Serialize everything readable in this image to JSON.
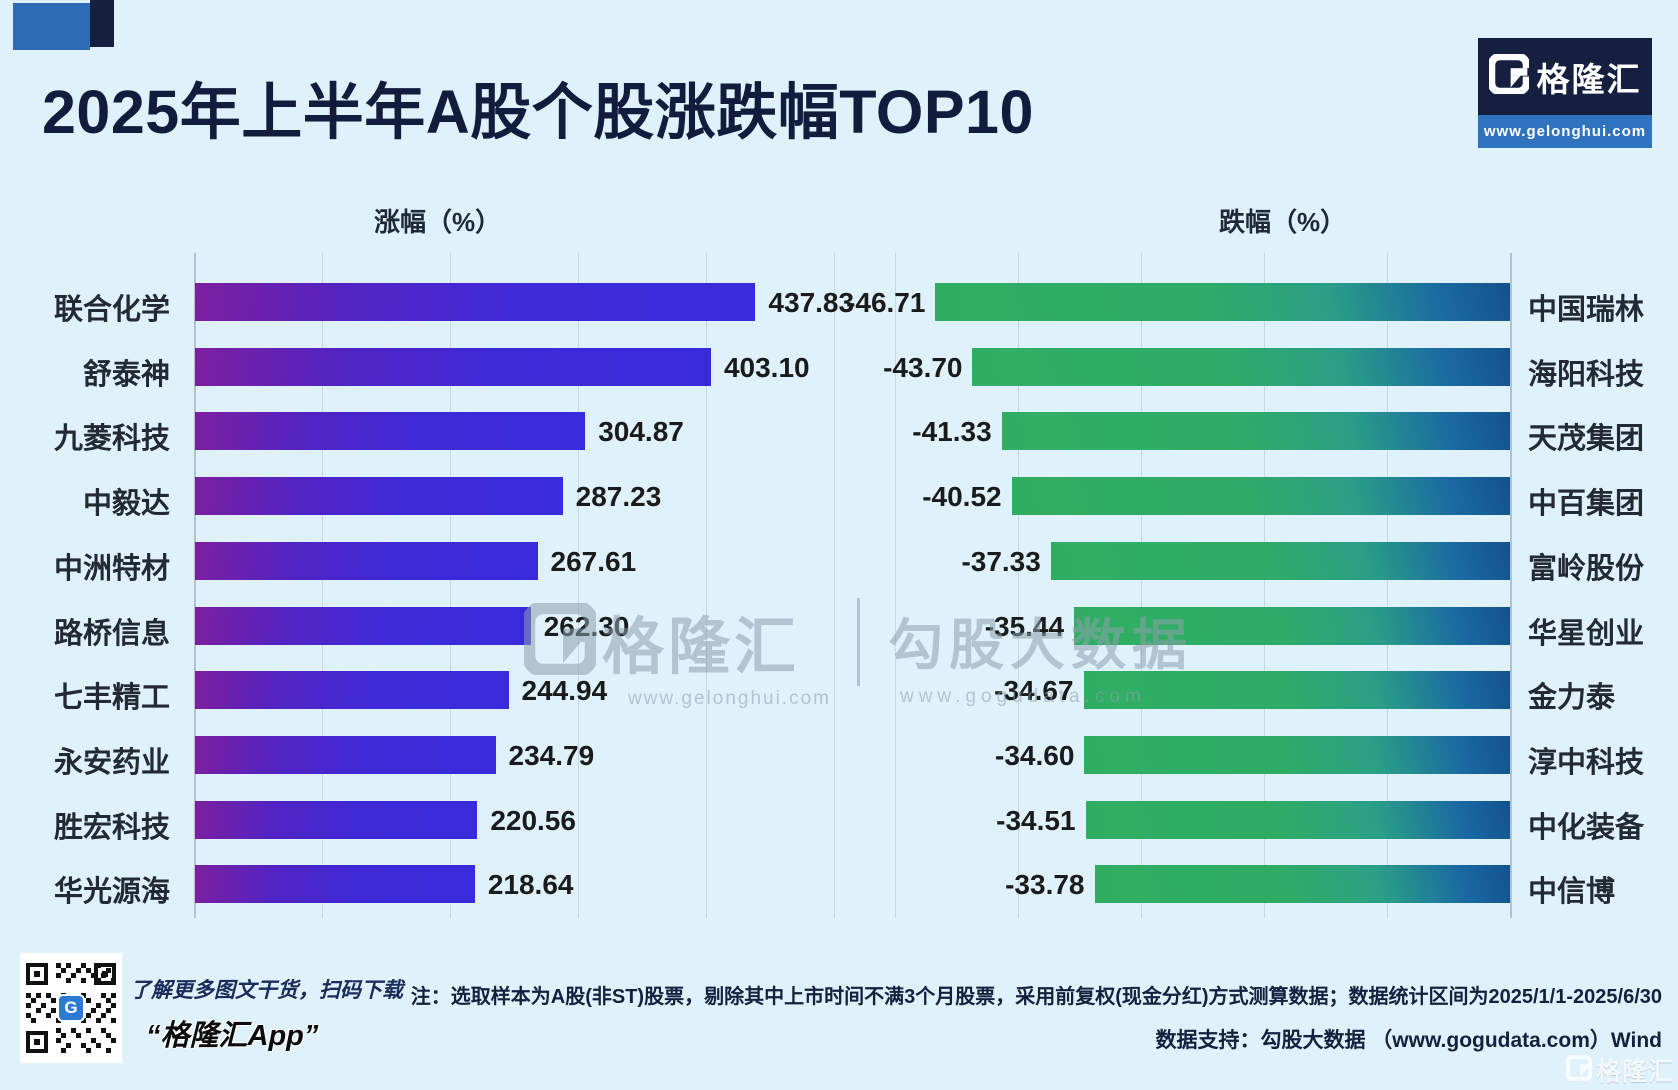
{
  "page": {
    "title": "2025年上半年A股个股涨跌幅TOP10",
    "background": "#DFF1FA"
  },
  "logo": {
    "mark": "G",
    "name": "格隆汇",
    "url": "www.gelonghui.com"
  },
  "chart_data": [
    {
      "type": "bar",
      "title": "涨幅（%）",
      "orientation": "horizontal",
      "categories": [
        "联合化学",
        "舒泰神",
        "九菱科技",
        "中毅达",
        "中洲特材",
        "路桥信息",
        "七丰精工",
        "永安药业",
        "胜宏科技",
        "华光源海"
      ],
      "values": [
        437.83,
        403.1,
        304.87,
        287.23,
        267.61,
        262.3,
        244.94,
        234.79,
        220.56,
        218.64
      ],
      "xlim": [
        0,
        500
      ],
      "grid_step": 100,
      "grid_on": true,
      "value_labels": "end-of-bar",
      "bar_color_start": "#7C1F9F",
      "bar_color_end": "#392BDB"
    },
    {
      "type": "bar",
      "title": "跌幅（%）",
      "orientation": "horizontal",
      "categories": [
        "中国瑞林",
        "海阳科技",
        "天茂集团",
        "中百集团",
        "富岭股份",
        "华星创业",
        "金力泰",
        "淳中科技",
        "中化装备",
        "中信博"
      ],
      "values": [
        -46.71,
        -43.7,
        -41.33,
        -40.52,
        -37.33,
        -35.44,
        -34.67,
        -34.6,
        -34.51,
        -33.78
      ],
      "xlim": [
        -50,
        0
      ],
      "grid_step": 10,
      "grid_on": true,
      "value_labels": "end-of-bar",
      "bar_color_start": "#2FAE63",
      "bar_color_end": "#14528C"
    }
  ],
  "watermark": {
    "gelonghui": {
      "name": "格隆汇",
      "url": "www.gelonghui.com"
    },
    "gogudata": {
      "name": "勾股大数据",
      "url": "www.gogudata.com"
    }
  },
  "qr": {
    "caption1": "了解更多图文干货，扫码下载",
    "caption2": "“格隆汇App”",
    "badge": "G"
  },
  "notes": {
    "line1": "注：选取样本为A股(非ST)股票，剔除其中上市时间不满3个月股票，采用前复权(现金分红)方式测算数据；数据统计区间为2025/1/1-2025/6/30",
    "line2": "数据支持：勾股大数据 （www.gogudata.com）Wind"
  },
  "footer_logo": {
    "name": "格隆汇"
  }
}
